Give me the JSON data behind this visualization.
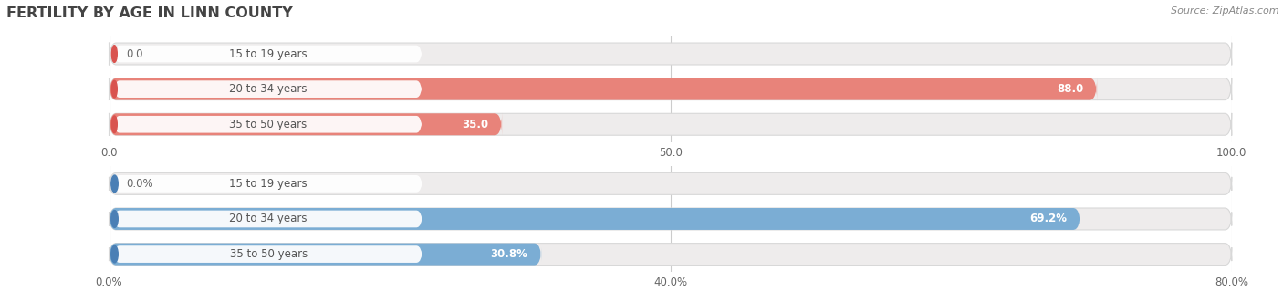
{
  "title": "FERTILITY BY AGE IN LINN COUNTY",
  "source": "Source: ZipAtlas.com",
  "top_chart": {
    "categories": [
      "15 to 19 years",
      "20 to 34 years",
      "35 to 50 years"
    ],
    "values": [
      0.0,
      88.0,
      35.0
    ],
    "xlim": [
      0,
      100
    ],
    "xticks": [
      0.0,
      50.0,
      100.0
    ],
    "xtick_labels": [
      "0.0",
      "50.0",
      "100.0"
    ],
    "bar_color": "#E8837A",
    "bar_color_dark": "#D9534F",
    "bg_color": "#EEECEC"
  },
  "bottom_chart": {
    "categories": [
      "15 to 19 years",
      "20 to 34 years",
      "35 to 50 years"
    ],
    "values": [
      0.0,
      69.2,
      30.8
    ],
    "xlim": [
      0,
      80
    ],
    "xticks": [
      0.0,
      40.0,
      80.0
    ],
    "xtick_labels": [
      "0.0%",
      "40.0%",
      "80.0%"
    ],
    "bar_color": "#7BADD4",
    "bar_color_dark": "#4A7FB5",
    "bg_color": "#EEECEC"
  },
  "background_color": "#FFFFFF",
  "label_bg_color": "#FFFFFF",
  "label_text_color": "#555555",
  "label_outside_color": "#666666",
  "title_color": "#444444",
  "source_color": "#888888"
}
